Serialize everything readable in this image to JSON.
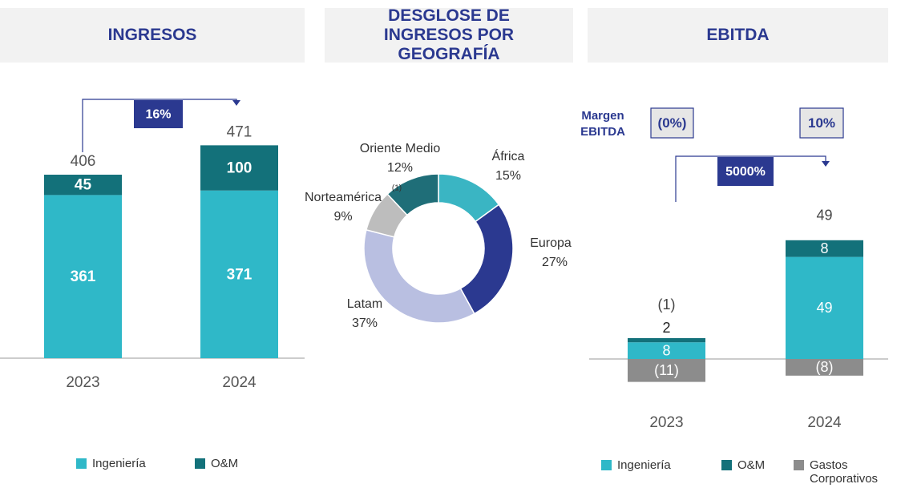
{
  "chart_data": [
    {
      "type": "bar",
      "stacked": true,
      "title": "INGRESOS",
      "categories": [
        "2023",
        "2024"
      ],
      "series": [
        {
          "name": "Ingeniería",
          "color": "#2fb8c8",
          "values": [
            361,
            371
          ]
        },
        {
          "name": "O&M",
          "color": "#13717a",
          "values": [
            45,
            100
          ]
        }
      ],
      "totals": [
        406,
        471
      ],
      "growth": 16,
      "growth_label": "16%"
    },
    {
      "type": "pie",
      "donut": true,
      "title": "DESGLOSE DE INGRESOS POR GEOGRAFÍA",
      "categories": [
        "África",
        "Europa",
        "Latam",
        "Norteamérica",
        "Oriente Medio"
      ],
      "values": [
        15,
        27,
        37,
        9,
        12
      ],
      "value_labels": [
        "15%",
        "27%",
        "37%",
        "9%",
        "12%"
      ],
      "colors": [
        "#3ab5c3",
        "#2b3990",
        "#b9bfe1",
        "#bdbdbd",
        "#1f6e78"
      ],
      "footnote": "(1)"
    },
    {
      "type": "bar",
      "stacked": true,
      "title": "EBITDA",
      "categories": [
        "2023",
        "2024"
      ],
      "series": [
        {
          "name": "Ingeniería",
          "color": "#2fb8c8",
          "values": [
            8,
            49
          ]
        },
        {
          "name": "O&M",
          "color": "#13717a",
          "values": [
            2,
            8
          ]
        },
        {
          "name": "Gastos Corporativos",
          "color": "#8c8c8c",
          "values": [
            -11,
            -8
          ],
          "value_labels": [
            "(11)",
            "(8)"
          ]
        }
      ],
      "totals": [
        -1,
        49
      ],
      "total_labels": [
        "(1)",
        "49"
      ],
      "growth": 5000,
      "growth_label": "5000%",
      "margin_title": "Margen EBITDA",
      "margins": [
        0,
        10
      ],
      "margin_labels": [
        "(0%)",
        "10%"
      ]
    }
  ]
}
